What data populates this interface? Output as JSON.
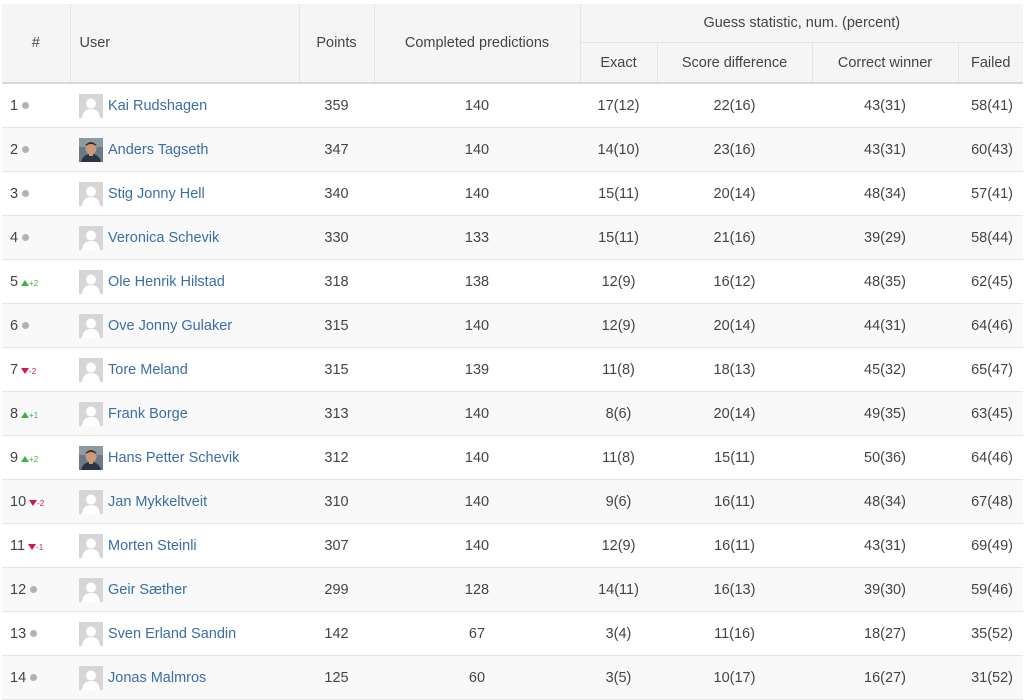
{
  "headers": {
    "rank": "#",
    "user": "User",
    "points": "Points",
    "completed": "Completed predictions",
    "guess_group": "Guess statistic, num. (percent)",
    "exact": "Exact",
    "score_diff": "Score difference",
    "correct_winner": "Correct winner",
    "failed": "Failed"
  },
  "colors": {
    "link": "#3a6ea5",
    "trend_up": "#3cb043",
    "trend_down": "#d4145a",
    "unchanged_dot": "#b3b3b3"
  },
  "rows": [
    {
      "rank": "1",
      "trend": "none",
      "trend_text": "",
      "avatar": "default-avatar",
      "user": "Kai Rudshagen",
      "points": "359",
      "completed": "140",
      "exact": "17(12)",
      "score_diff": "22(16)",
      "correct_winner": "43(31)",
      "failed": "58(41)"
    },
    {
      "rank": "2",
      "trend": "none",
      "trend_text": "",
      "avatar": "photo-avatar",
      "user": "Anders Tagseth",
      "points": "347",
      "completed": "140",
      "exact": "14(10)",
      "score_diff": "23(16)",
      "correct_winner": "43(31)",
      "failed": "60(43)"
    },
    {
      "rank": "3",
      "trend": "none",
      "trend_text": "",
      "avatar": "default-avatar",
      "user": "Stig Jonny Hell",
      "points": "340",
      "completed": "140",
      "exact": "15(11)",
      "score_diff": "20(14)",
      "correct_winner": "48(34)",
      "failed": "57(41)"
    },
    {
      "rank": "4",
      "trend": "none",
      "trend_text": "",
      "avatar": "default-avatar",
      "user": "Veronica Schevik",
      "points": "330",
      "completed": "133",
      "exact": "15(11)",
      "score_diff": "21(16)",
      "correct_winner": "39(29)",
      "failed": "58(44)"
    },
    {
      "rank": "5",
      "trend": "up",
      "trend_text": "+2",
      "avatar": "default-avatar",
      "user": "Ole Henrik Hilstad",
      "points": "318",
      "completed": "138",
      "exact": "12(9)",
      "score_diff": "16(12)",
      "correct_winner": "48(35)",
      "failed": "62(45)"
    },
    {
      "rank": "6",
      "trend": "none",
      "trend_text": "",
      "avatar": "default-avatar",
      "user": "Ove Jonny Gulaker",
      "points": "315",
      "completed": "140",
      "exact": "12(9)",
      "score_diff": "20(14)",
      "correct_winner": "44(31)",
      "failed": "64(46)"
    },
    {
      "rank": "7",
      "trend": "down",
      "trend_text": "-2",
      "avatar": "default-avatar",
      "user": "Tore Meland",
      "points": "315",
      "completed": "139",
      "exact": "11(8)",
      "score_diff": "18(13)",
      "correct_winner": "45(32)",
      "failed": "65(47)"
    },
    {
      "rank": "8",
      "trend": "up",
      "trend_text": "+1",
      "avatar": "default-avatar",
      "user": "Frank Borge",
      "points": "313",
      "completed": "140",
      "exact": "8(6)",
      "score_diff": "20(14)",
      "correct_winner": "49(35)",
      "failed": "63(45)"
    },
    {
      "rank": "9",
      "trend": "up",
      "trend_text": "+2",
      "avatar": "photo-avatar",
      "user": "Hans Petter Schevik",
      "points": "312",
      "completed": "140",
      "exact": "11(8)",
      "score_diff": "15(11)",
      "correct_winner": "50(36)",
      "failed": "64(46)"
    },
    {
      "rank": "10",
      "trend": "down",
      "trend_text": "-2",
      "avatar": "default-avatar",
      "user": "Jan Mykkeltveit",
      "points": "310",
      "completed": "140",
      "exact": "9(6)",
      "score_diff": "16(11)",
      "correct_winner": "48(34)",
      "failed": "67(48)"
    },
    {
      "rank": "11",
      "trend": "down",
      "trend_text": "-1",
      "avatar": "default-avatar",
      "user": "Morten Steinli",
      "points": "307",
      "completed": "140",
      "exact": "12(9)",
      "score_diff": "16(11)",
      "correct_winner": "43(31)",
      "failed": "69(49)"
    },
    {
      "rank": "12",
      "trend": "none",
      "trend_text": "",
      "avatar": "default-avatar",
      "user": "Geir Sæther",
      "points": "299",
      "completed": "128",
      "exact": "14(11)",
      "score_diff": "16(13)",
      "correct_winner": "39(30)",
      "failed": "59(46)"
    },
    {
      "rank": "13",
      "trend": "none",
      "trend_text": "",
      "avatar": "default-avatar",
      "user": "Sven Erland Sandin",
      "points": "142",
      "completed": "67",
      "exact": "3(4)",
      "score_diff": "11(16)",
      "correct_winner": "18(27)",
      "failed": "35(52)"
    },
    {
      "rank": "14",
      "trend": "none",
      "trend_text": "",
      "avatar": "default-avatar",
      "user": "Jonas Malmros",
      "points": "125",
      "completed": "60",
      "exact": "3(5)",
      "score_diff": "10(17)",
      "correct_winner": "16(27)",
      "failed": "31(52)"
    }
  ]
}
